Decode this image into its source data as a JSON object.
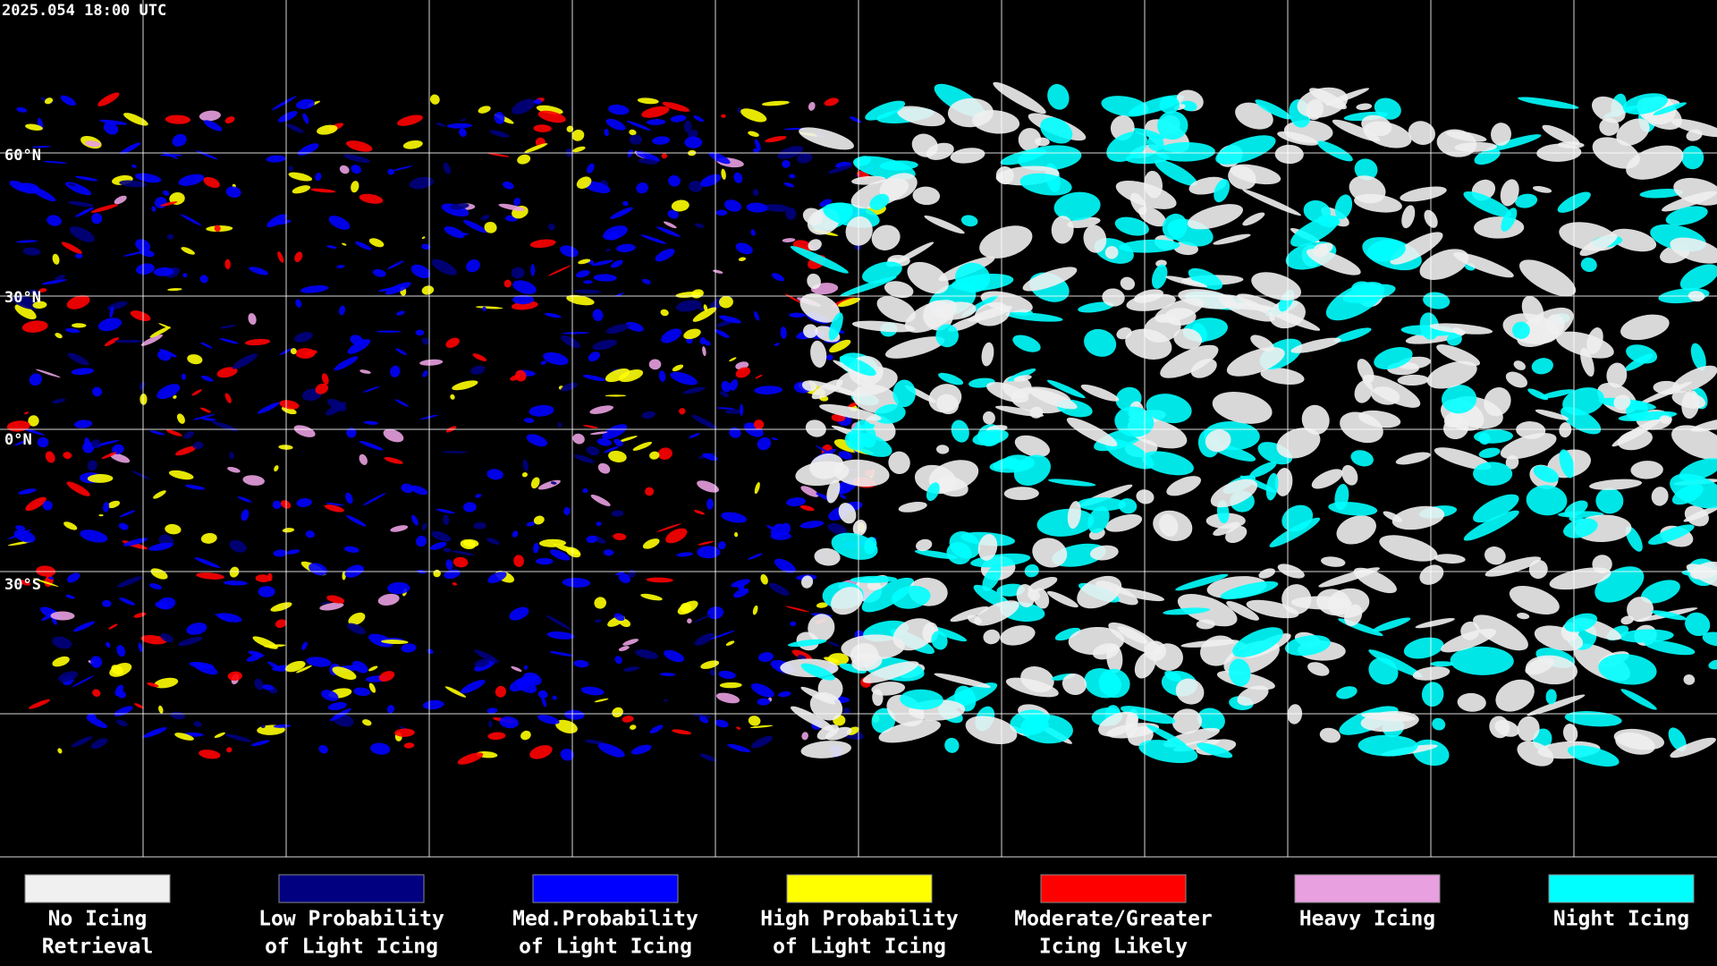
{
  "header": {
    "timestamp": "2025.054 18:00 UTC"
  },
  "latitude_labels": [
    "60°N",
    "30°N",
    "0°N",
    "30°S"
  ],
  "legend": [
    {
      "lines": [
        "No Icing",
        "Retrieval"
      ],
      "color": "#f0f0f0"
    },
    {
      "lines": [
        "Low Probability",
        "of Light Icing"
      ],
      "color": "#000080"
    },
    {
      "lines": [
        "Med.Probability",
        "of Light Icing"
      ],
      "color": "#0000ff"
    },
    {
      "lines": [
        "High Probability",
        "of Light Icing"
      ],
      "color": "#ffff00"
    },
    {
      "lines": [
        "Moderate/Greater",
        "Icing Likely"
      ],
      "color": "#ff0000"
    },
    {
      "lines": [
        "Heavy Icing"
      ],
      "color": "#e8a0e0"
    },
    {
      "lines": [
        "Night Icing"
      ],
      "color": "#00ffff"
    }
  ]
}
